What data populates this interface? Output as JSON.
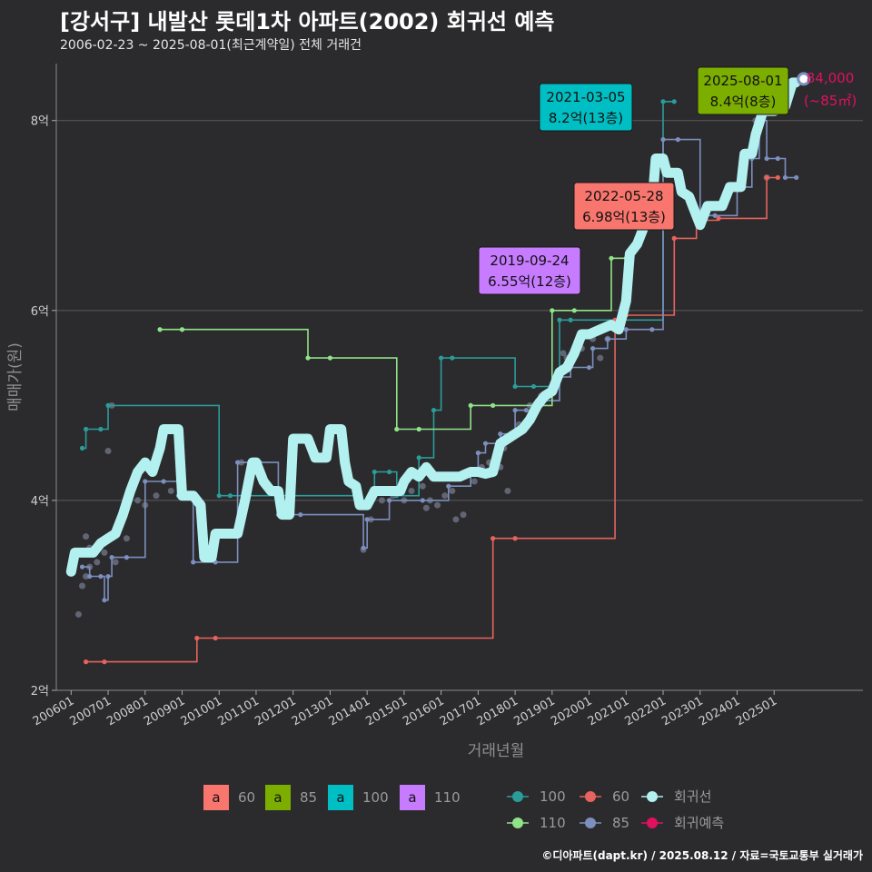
{
  "title": "[강서구] 내발산 롯데1차 아파트(2002) 회귀선 예측",
  "subtitle": "2006-02-23 ~ 2025-08-01(최근계약일) 전체 거래건",
  "caption": "©디아파트(dapt.kr) / 2025.08.12 / 자료=국토교통부 실거래가",
  "colors": {
    "bg": "#2b2b2d",
    "grid": "#5a5a5c",
    "regression": "#b3f0f0",
    "forecast": "#e0115f",
    "area60": "#f8766d",
    "area85": "#7cae00",
    "area100": "#00bfc4",
    "area110": "#c77cff",
    "s100": "#2a9d9a",
    "s60": "#e8635d",
    "s85": "#7d8fbf",
    "s110": "#8fe388",
    "points": "#6b6f80"
  },
  "chart_data": {
    "type": "line",
    "xlabel": "거래년월",
    "ylabel": "매매가(원)",
    "ylim": [
      2,
      8.6
    ],
    "xlim": [
      2005.6,
      2027.4
    ],
    "y_ticks": [
      {
        "v": 2,
        "label": "2억"
      },
      {
        "v": 4,
        "label": "4억"
      },
      {
        "v": 6,
        "label": "6억"
      },
      {
        "v": 8,
        "label": "8억"
      }
    ],
    "x_ticks": [
      "200601",
      "200701",
      "200801",
      "200901",
      "201001",
      "201101",
      "201201",
      "201301",
      "201401",
      "201501",
      "201601",
      "201701",
      "201801",
      "201901",
      "202001",
      "202101",
      "202201",
      "202301",
      "202401",
      "202501"
    ],
    "regression": [
      [
        2006.0,
        3.25
      ],
      [
        2006.1,
        3.45
      ],
      [
        2006.6,
        3.45
      ],
      [
        2006.8,
        3.55
      ],
      [
        2007.0,
        3.6
      ],
      [
        2007.2,
        3.65
      ],
      [
        2007.4,
        3.85
      ],
      [
        2007.6,
        4.1
      ],
      [
        2007.8,
        4.3
      ],
      [
        2008.0,
        4.4
      ],
      [
        2008.2,
        4.3
      ],
      [
        2008.4,
        4.55
      ],
      [
        2008.5,
        4.75
      ],
      [
        2008.9,
        4.75
      ],
      [
        2009.0,
        4.05
      ],
      [
        2009.3,
        4.05
      ],
      [
        2009.5,
        3.95
      ],
      [
        2009.6,
        3.4
      ],
      [
        2009.8,
        3.4
      ],
      [
        2009.9,
        3.65
      ],
      [
        2010.5,
        3.65
      ],
      [
        2010.7,
        4.0
      ],
      [
        2010.9,
        4.4
      ],
      [
        2011.0,
        4.4
      ],
      [
        2011.2,
        4.2
      ],
      [
        2011.4,
        4.1
      ],
      [
        2011.6,
        4.1
      ],
      [
        2011.7,
        3.85
      ],
      [
        2011.9,
        3.85
      ],
      [
        2012.0,
        4.65
      ],
      [
        2012.4,
        4.65
      ],
      [
        2012.6,
        4.45
      ],
      [
        2012.9,
        4.45
      ],
      [
        2013.0,
        4.75
      ],
      [
        2013.3,
        4.75
      ],
      [
        2013.4,
        4.4
      ],
      [
        2013.5,
        4.2
      ],
      [
        2013.7,
        4.15
      ],
      [
        2013.8,
        3.95
      ],
      [
        2014.0,
        3.95
      ],
      [
        2014.2,
        4.1
      ],
      [
        2014.9,
        4.1
      ],
      [
        2015.0,
        4.2
      ],
      [
        2015.2,
        4.3
      ],
      [
        2015.4,
        4.25
      ],
      [
        2015.6,
        4.35
      ],
      [
        2015.8,
        4.25
      ],
      [
        2016.5,
        4.25
      ],
      [
        2016.8,
        4.3
      ],
      [
        2017.0,
        4.3
      ],
      [
        2017.2,
        4.28
      ],
      [
        2017.4,
        4.3
      ],
      [
        2017.6,
        4.6
      ],
      [
        2017.8,
        4.65
      ],
      [
        2018.0,
        4.7
      ],
      [
        2018.2,
        4.75
      ],
      [
        2018.4,
        4.85
      ],
      [
        2018.6,
        5.0
      ],
      [
        2018.8,
        5.1
      ],
      [
        2019.0,
        5.15
      ],
      [
        2019.2,
        5.35
      ],
      [
        2019.4,
        5.4
      ],
      [
        2019.6,
        5.55
      ],
      [
        2019.8,
        5.75
      ],
      [
        2020.0,
        5.75
      ],
      [
        2020.3,
        5.8
      ],
      [
        2020.6,
        5.85
      ],
      [
        2020.8,
        5.8
      ],
      [
        2021.0,
        6.1
      ],
      [
        2021.1,
        6.6
      ],
      [
        2021.3,
        6.7
      ],
      [
        2021.5,
        6.9
      ],
      [
        2021.7,
        7.1
      ],
      [
        2021.8,
        7.6
      ],
      [
        2022.0,
        7.6
      ],
      [
        2022.1,
        7.45
      ],
      [
        2022.4,
        7.45
      ],
      [
        2022.5,
        7.25
      ],
      [
        2022.7,
        7.2
      ],
      [
        2022.9,
        7.0
      ],
      [
        2023.0,
        6.9
      ],
      [
        2023.1,
        7.0
      ],
      [
        2023.2,
        7.1
      ],
      [
        2023.6,
        7.1
      ],
      [
        2023.8,
        7.3
      ],
      [
        2024.1,
        7.3
      ],
      [
        2024.2,
        7.65
      ],
      [
        2024.4,
        7.65
      ],
      [
        2024.5,
        7.85
      ],
      [
        2024.7,
        8.1
      ],
      [
        2025.0,
        8.1
      ],
      [
        2025.3,
        8.15
      ],
      [
        2025.5,
        8.4
      ],
      [
        2025.58,
        8.4
      ]
    ],
    "series": [
      {
        "name": "100",
        "points": [
          [
            2006.3,
            4.55
          ],
          [
            2006.4,
            4.75
          ],
          [
            2006.8,
            4.75
          ],
          [
            2007.0,
            5.0
          ],
          [
            2010.0,
            4.05
          ],
          [
            2010.3,
            4.05
          ],
          [
            2013.8,
            4.0
          ],
          [
            2014.2,
            4.3
          ],
          [
            2014.6,
            4.3
          ],
          [
            2014.8,
            4.05
          ],
          [
            2015.4,
            4.45
          ],
          [
            2015.8,
            4.95
          ],
          [
            2016.0,
            5.5
          ],
          [
            2016.3,
            5.5
          ],
          [
            2018.0,
            5.2
          ],
          [
            2018.5,
            5.2
          ],
          [
            2019.2,
            5.9
          ],
          [
            2019.5,
            5.9
          ],
          [
            2022.0,
            8.2
          ],
          [
            2022.3,
            8.2
          ]
        ]
      },
      {
        "name": "60",
        "points": [
          [
            2006.4,
            2.3
          ],
          [
            2006.9,
            2.3
          ],
          [
            2009.4,
            2.55
          ],
          [
            2009.9,
            2.55
          ],
          [
            2017.4,
            3.6
          ],
          [
            2018.0,
            3.6
          ],
          [
            2020.7,
            5.9
          ],
          [
            2021.0,
            5.95
          ],
          [
            2022.3,
            6.76
          ],
          [
            2022.9,
            6.95
          ],
          [
            2023.5,
            6.97
          ],
          [
            2024.8,
            7.4
          ],
          [
            2025.1,
            7.4
          ]
        ]
      },
      {
        "name": "85",
        "points": [
          [
            2006.3,
            3.3
          ],
          [
            2006.5,
            3.2
          ],
          [
            2006.8,
            3.2
          ],
          [
            2006.9,
            2.95
          ],
          [
            2007.0,
            3.2
          ],
          [
            2007.1,
            3.4
          ],
          [
            2007.5,
            3.4
          ],
          [
            2008.0,
            4.2
          ],
          [
            2008.5,
            4.2
          ],
          [
            2008.9,
            4.05
          ],
          [
            2009.3,
            3.35
          ],
          [
            2009.9,
            3.35
          ],
          [
            2010.5,
            4.4
          ],
          [
            2011.1,
            4.4
          ],
          [
            2011.6,
            3.85
          ],
          [
            2012.2,
            3.85
          ],
          [
            2013.9,
            3.5
          ],
          [
            2014.0,
            3.8
          ],
          [
            2014.6,
            4.0
          ],
          [
            2015.5,
            4.0
          ],
          [
            2016.2,
            4.15
          ],
          [
            2016.8,
            4.3
          ],
          [
            2017.0,
            4.5
          ],
          [
            2017.2,
            4.6
          ],
          [
            2017.6,
            4.7
          ],
          [
            2018.0,
            4.95
          ],
          [
            2018.3,
            4.95
          ],
          [
            2018.6,
            5.05
          ],
          [
            2019.2,
            5.3
          ],
          [
            2019.5,
            5.4
          ],
          [
            2020.0,
            5.4
          ],
          [
            2020.1,
            5.6
          ],
          [
            2020.5,
            5.7
          ],
          [
            2021.0,
            5.8
          ],
          [
            2021.7,
            5.8
          ],
          [
            2022.0,
            7.8
          ],
          [
            2022.4,
            7.8
          ],
          [
            2023.0,
            7.0
          ],
          [
            2023.4,
            7.0
          ],
          [
            2024.0,
            7.3
          ],
          [
            2024.4,
            7.6
          ],
          [
            2024.6,
            8.0
          ],
          [
            2024.8,
            7.6
          ],
          [
            2025.1,
            7.6
          ],
          [
            2025.3,
            7.4
          ],
          [
            2025.6,
            7.4
          ]
        ]
      },
      {
        "name": "110",
        "points": [
          [
            2008.4,
            5.8
          ],
          [
            2009.0,
            5.8
          ],
          [
            2012.4,
            5.5
          ],
          [
            2013.0,
            5.5
          ],
          [
            2014.8,
            4.75
          ],
          [
            2015.4,
            4.75
          ],
          [
            2016.8,
            5.0
          ],
          [
            2017.4,
            5.0
          ],
          [
            2019.0,
            6.0
          ],
          [
            2019.6,
            6.0
          ],
          [
            2020.6,
            6.55
          ],
          [
            2021.0,
            6.55
          ]
        ]
      }
    ],
    "scatter": [
      [
        2006.2,
        2.8
      ],
      [
        2006.3,
        3.1
      ],
      [
        2006.4,
        3.2
      ],
      [
        2006.5,
        3.3
      ],
      [
        2006.4,
        3.62
      ],
      [
        2006.5,
        3.5
      ],
      [
        2006.7,
        3.35
      ],
      [
        2006.9,
        3.45
      ],
      [
        2007.0,
        4.52
      ],
      [
        2007.1,
        5.0
      ],
      [
        2007.2,
        3.35
      ],
      [
        2007.5,
        3.6
      ],
      [
        2007.8,
        4.0
      ],
      [
        2008.0,
        3.95
      ],
      [
        2008.3,
        4.05
      ],
      [
        2009.6,
        3.4
      ],
      [
        2010.2,
        3.65
      ],
      [
        2010.6,
        4.4
      ],
      [
        2011.0,
        4.42
      ],
      [
        2011.8,
        3.85
      ],
      [
        2013.9,
        3.48
      ],
      [
        2014.1,
        3.8
      ],
      [
        2014.4,
        4.0
      ],
      [
        2014.7,
        4.05
      ],
      [
        2015.0,
        4.0
      ],
      [
        2015.2,
        4.1
      ],
      [
        2015.5,
        4.15
      ],
      [
        2015.7,
        4.0
      ],
      [
        2015.9,
        3.95
      ],
      [
        2016.1,
        4.05
      ],
      [
        2016.3,
        4.1
      ],
      [
        2016.6,
        3.85
      ],
      [
        2016.9,
        4.2
      ],
      [
        2017.1,
        4.35
      ],
      [
        2017.3,
        4.4
      ],
      [
        2017.5,
        4.5
      ],
      [
        2017.7,
        4.55
      ],
      [
        2017.9,
        4.7
      ],
      [
        2018.1,
        4.8
      ],
      [
        2018.4,
        5.0
      ],
      [
        2018.7,
        5.1
      ],
      [
        2019.1,
        5.3
      ],
      [
        2019.4,
        5.5
      ],
      [
        2019.8,
        5.6
      ],
      [
        2020.1,
        5.7
      ],
      [
        2020.5,
        5.7
      ],
      [
        2020.8,
        5.85
      ],
      [
        2021.0,
        6.0
      ],
      [
        2024.5,
        8.0
      ],
      [
        2024.8,
        7.4
      ],
      [
        2019.3,
        5.55
      ],
      [
        2020.3,
        5.5
      ],
      [
        2017.8,
        4.1
      ],
      [
        2017.6,
        4.35
      ],
      [
        2016.4,
        3.8
      ],
      [
        2015.6,
        3.92
      ],
      [
        2014.9,
        4.1
      ],
      [
        2009.0,
        4.05
      ],
      [
        2008.7,
        4.1
      ]
    ],
    "forecast": {
      "x": 2025.7,
      "y": 8.4,
      "label": "84,000",
      "sub": "(~85㎡)"
    },
    "annotations": [
      {
        "date": "2025-08-01",
        "text": "8.4억(8층)",
        "area": "85",
        "x": 2025.58,
        "y": 8.4
      },
      {
        "date": "2021-03-05",
        "text": "8.2억(13층)",
        "area": "100",
        "x": 2021.18,
        "y": 8.2
      },
      {
        "date": "2022-05-28",
        "text": "6.98억(13층)",
        "area": "60",
        "x": 2022.41,
        "y": 6.98
      },
      {
        "date": "2019-09-24",
        "text": "6.55억(12층)",
        "area": "110",
        "x": 2019.73,
        "y": 6.55
      }
    ]
  },
  "legend_area": {
    "items": [
      {
        "key": "a",
        "label": "60"
      },
      {
        "key": "a",
        "label": "85"
      },
      {
        "key": "a",
        "label": "100"
      },
      {
        "key": "a",
        "label": "110"
      }
    ]
  },
  "legend_series": {
    "items": [
      {
        "label": "100"
      },
      {
        "label": "60"
      },
      {
        "label": "회귀선"
      },
      {
        "label": "110"
      },
      {
        "label": "85"
      },
      {
        "label": "회귀예측"
      }
    ]
  }
}
